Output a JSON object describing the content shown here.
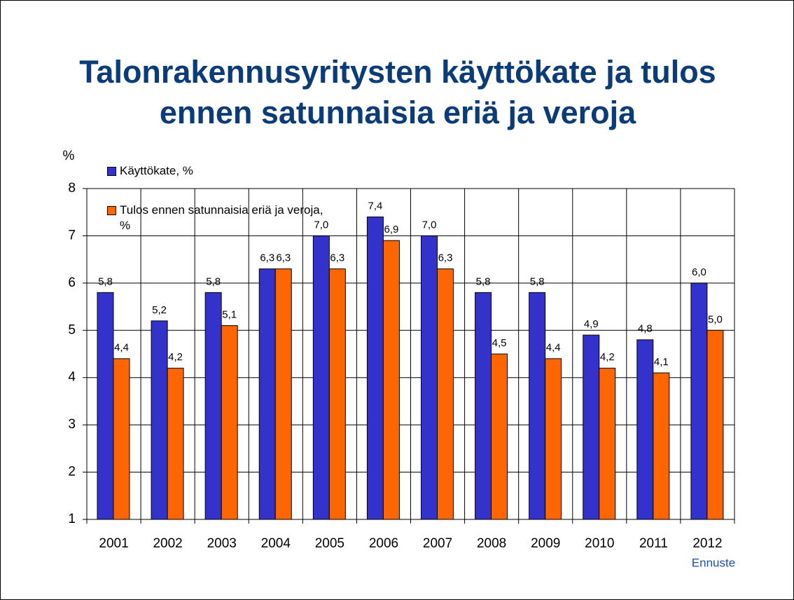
{
  "chart_data": {
    "type": "bar",
    "title": [
      "Talonrakennusyritysten käyttökate ja tulos",
      "ennen satunnaisia eriä ja veroja"
    ],
    "y_label": "%",
    "annotation": "Ennuste",
    "categories": [
      "2001",
      "2002",
      "2003",
      "2004",
      "2005",
      "2006",
      "2007",
      "2008",
      "2009",
      "2010",
      "2011",
      "2012"
    ],
    "series": [
      {
        "name": "Käyttökate, %",
        "color": "#3333cc",
        "values": [
          5.8,
          5.2,
          5.8,
          6.3,
          7.0,
          7.4,
          7.0,
          5.8,
          5.8,
          4.9,
          4.8,
          6.0
        ],
        "value_labels": [
          "5,8",
          "5,2",
          "5,8",
          "6,3",
          "7,0",
          "7,4",
          "7,0",
          "5,8",
          "5,8",
          "4,9",
          "4,8",
          "6,0"
        ]
      },
      {
        "name": "Tulos ennen satunnaisia eriä ja veroja, %",
        "color": "#ff6600",
        "values": [
          4.4,
          4.2,
          5.1,
          6.3,
          6.3,
          6.9,
          6.3,
          4.5,
          4.4,
          4.2,
          4.1,
          5.0
        ],
        "value_labels": [
          "4,4",
          "4,2",
          "5,1",
          "6,3",
          "6,3",
          "6,9",
          "6,3",
          "4,5",
          "4,4",
          "4,2",
          "4,1",
          "5,0"
        ]
      }
    ],
    "ylim": [
      1,
      8
    ],
    "yticks": [
      1,
      2,
      3,
      4,
      5,
      6,
      7,
      8
    ],
    "grid": true,
    "legend": "top-left"
  }
}
